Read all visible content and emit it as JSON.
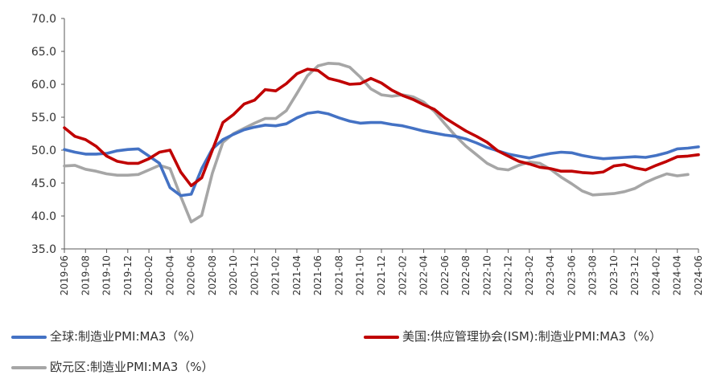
{
  "chart_data": {
    "type": "line",
    "ylim": [
      35,
      70
    ],
    "y_ticks": [
      "35.0",
      "40.0",
      "45.0",
      "50.0",
      "55.0",
      "60.0",
      "65.0",
      "70.0"
    ],
    "x_tick_labels": [
      "2019-06",
      "2019-08",
      "2019-10",
      "2019-12",
      "2020-02",
      "2020-04",
      "2020-06",
      "2020-08",
      "2020-10",
      "2020-12",
      "2021-02",
      "2021-04",
      "2021-06",
      "2021-08",
      "2021-10",
      "2021-12",
      "2022-02",
      "2022-04",
      "2022-06",
      "2022-08",
      "2022-10",
      "2022-12",
      "2023-02",
      "2023-04",
      "2023-06",
      "2023-08",
      "2023-10",
      "2023-12",
      "2024-02",
      "2024-04",
      "2024-06"
    ],
    "grid": false,
    "legend_position": "bottom",
    "series": [
      {
        "name": "全球:制造业PMI:MA3（%）",
        "color": "#4472C4",
        "values": [
          50.1,
          49.7,
          49.4,
          49.4,
          49.5,
          49.9,
          50.1,
          50.2,
          49.1,
          48.0,
          44.3,
          43.1,
          43.3,
          47.2,
          50.2,
          51.6,
          52.4,
          53.1,
          53.5,
          53.8,
          53.7,
          54.0,
          54.9,
          55.6,
          55.8,
          55.5,
          54.9,
          54.4,
          54.1,
          54.2,
          54.2,
          53.9,
          53.7,
          53.3,
          52.9,
          52.6,
          52.3,
          52.1,
          51.7,
          51.1,
          50.4,
          49.9,
          49.4,
          49.1,
          48.8,
          49.2,
          49.5,
          49.7,
          49.6,
          49.2,
          48.9,
          48.7,
          48.8,
          48.9,
          49.0,
          48.9,
          49.2,
          49.6,
          50.2,
          50.3,
          50.5
        ]
      },
      {
        "name": "美国:供应管理协会(ISM):制造业PMI:MA3（%）",
        "color": "#C00000",
        "values": [
          53.4,
          52.1,
          51.6,
          50.6,
          49.1,
          48.3,
          48.0,
          48.0,
          48.7,
          49.7,
          50.0,
          46.7,
          44.6,
          45.8,
          50.0,
          54.2,
          55.4,
          57.0,
          57.6,
          59.2,
          59.0,
          60.1,
          61.6,
          62.3,
          62.1,
          60.9,
          60.5,
          60.0,
          60.1,
          60.9,
          60.2,
          59.1,
          58.3,
          57.7,
          56.9,
          56.2,
          54.9,
          53.9,
          52.9,
          52.1,
          51.2,
          49.9,
          49.1,
          48.3,
          47.9,
          47.4,
          47.2,
          46.8,
          46.8,
          46.6,
          46.5,
          46.7,
          47.6,
          47.8,
          47.3,
          47.0,
          47.7,
          48.3,
          49.0,
          49.1,
          49.3
        ]
      },
      {
        "name": "欧元区:制造业PMI:MA3（%）",
        "color": "#A6A6A6",
        "values": [
          47.6,
          47.7,
          47.1,
          46.8,
          46.4,
          46.2,
          46.2,
          46.3,
          47.0,
          47.7,
          47.2,
          43.0,
          39.1,
          40.1,
          46.5,
          51.2,
          52.5,
          53.3,
          54.1,
          54.8,
          54.8,
          56.0,
          58.6,
          61.3,
          62.8,
          63.2,
          63.1,
          62.6,
          61.1,
          59.3,
          58.4,
          58.2,
          58.4,
          58.1,
          57.3,
          55.9,
          54.0,
          52.2,
          50.6,
          49.3,
          48.0,
          47.2,
          47.0,
          47.7,
          48.2,
          48.0,
          47.1,
          45.9,
          44.9,
          43.8,
          43.2,
          43.3,
          43.4,
          43.7,
          44.2,
          45.1,
          45.8,
          46.4,
          46.1,
          46.3
        ]
      }
    ]
  }
}
